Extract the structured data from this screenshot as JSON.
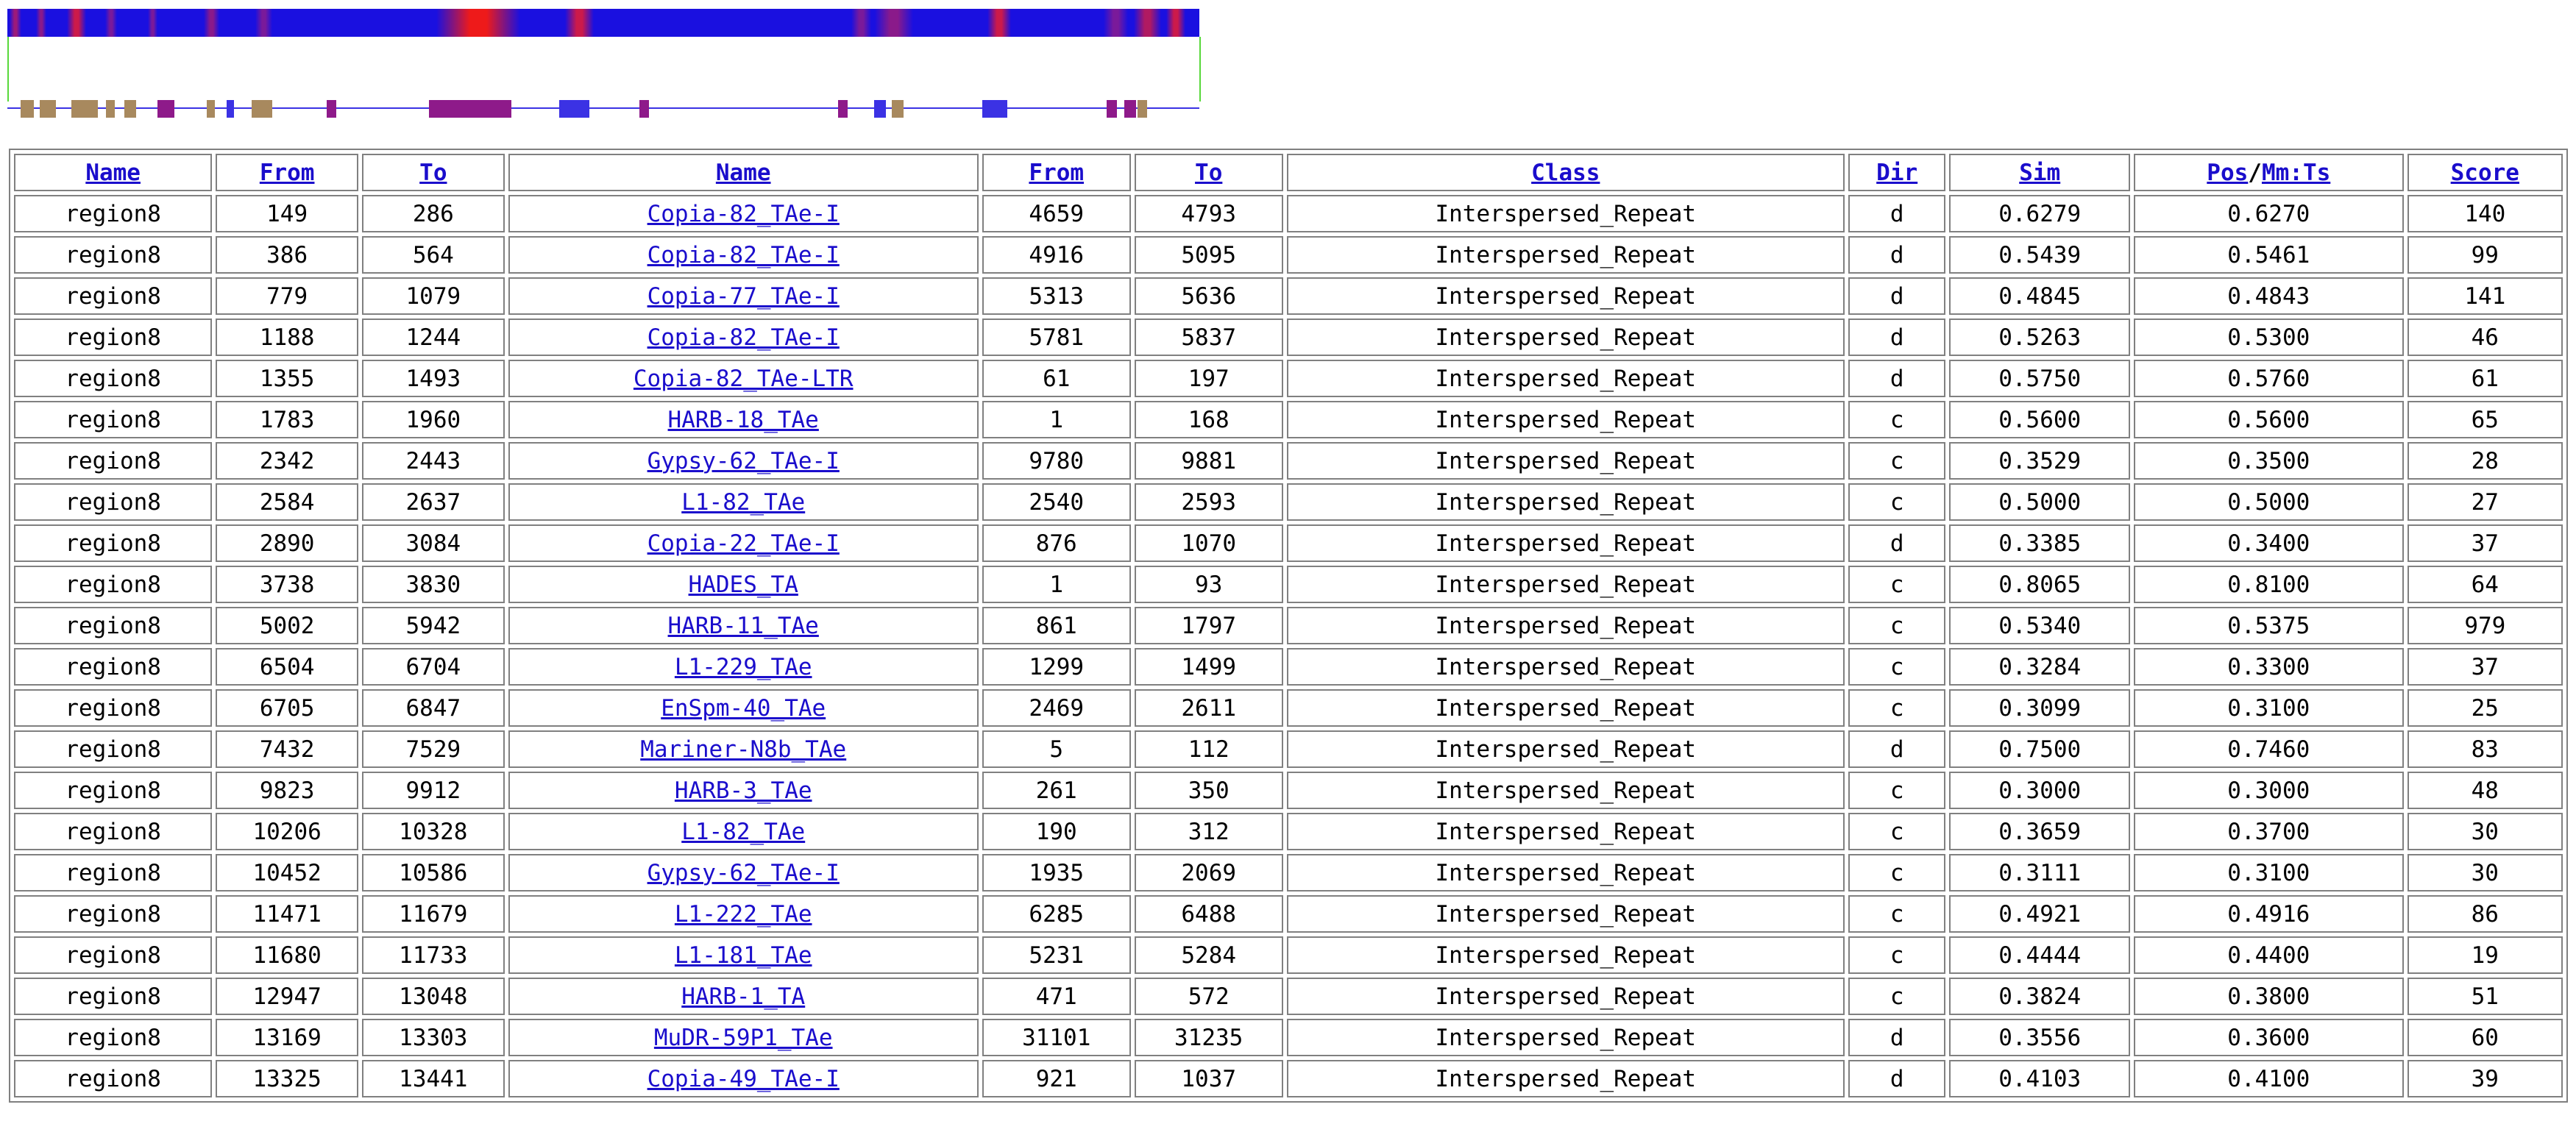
{
  "viz": {
    "heat_base": "#1a10e0",
    "heat_bands": [
      {
        "start": 0.002,
        "end": 0.012,
        "color": "#9b1a7a"
      },
      {
        "start": 0.024,
        "end": 0.033,
        "color": "#8a1a8a"
      },
      {
        "start": 0.05,
        "end": 0.066,
        "color": "#cc1a4a"
      },
      {
        "start": 0.082,
        "end": 0.092,
        "color": "#7a1a9a"
      },
      {
        "start": 0.118,
        "end": 0.126,
        "color": "#7a1a9a"
      },
      {
        "start": 0.165,
        "end": 0.178,
        "color": "#8a1a8a"
      },
      {
        "start": 0.208,
        "end": 0.222,
        "color": "#7a1a9a"
      },
      {
        "start": 0.36,
        "end": 0.43,
        "color": "#ee1a1a"
      },
      {
        "start": 0.468,
        "end": 0.492,
        "color": "#cc1a4a"
      },
      {
        "start": 0.708,
        "end": 0.725,
        "color": "#7a1a9a"
      },
      {
        "start": 0.728,
        "end": 0.76,
        "color": "#8a1a8a"
      },
      {
        "start": 0.822,
        "end": 0.842,
        "color": "#cc1a4a"
      },
      {
        "start": 0.92,
        "end": 0.94,
        "color": "#7a1a9a"
      },
      {
        "start": 0.945,
        "end": 0.968,
        "color": "#b01a62"
      },
      {
        "start": 0.972,
        "end": 0.988,
        "color": "#cc1a4a"
      }
    ],
    "features": [
      {
        "start": 0.011,
        "end": 0.022,
        "color": "#a8895e"
      },
      {
        "start": 0.027,
        "end": 0.041,
        "color": "#a8895e"
      },
      {
        "start": 0.054,
        "end": 0.076,
        "color": "#a8895e"
      },
      {
        "start": 0.083,
        "end": 0.09,
        "color": "#a8895e"
      },
      {
        "start": 0.098,
        "end": 0.108,
        "color": "#a8895e"
      },
      {
        "start": 0.126,
        "end": 0.14,
        "color": "#8e1a8a"
      },
      {
        "start": 0.167,
        "end": 0.174,
        "color": "#a8895e"
      },
      {
        "start": 0.184,
        "end": 0.19,
        "color": "#3b32e4"
      },
      {
        "start": 0.205,
        "end": 0.222,
        "color": "#a8895e"
      },
      {
        "start": 0.268,
        "end": 0.276,
        "color": "#8e1a8a"
      },
      {
        "start": 0.354,
        "end": 0.423,
        "color": "#8e1a8a"
      },
      {
        "start": 0.463,
        "end": 0.488,
        "color": "#3b32e4"
      },
      {
        "start": 0.53,
        "end": 0.538,
        "color": "#8e1a8a"
      },
      {
        "start": 0.697,
        "end": 0.705,
        "color": "#8e1a8a"
      },
      {
        "start": 0.727,
        "end": 0.737,
        "color": "#3b32e4"
      },
      {
        "start": 0.742,
        "end": 0.752,
        "color": "#a8895e"
      },
      {
        "start": 0.818,
        "end": 0.839,
        "color": "#3b32e4"
      },
      {
        "start": 0.922,
        "end": 0.931,
        "color": "#8e1a8a"
      },
      {
        "start": 0.937,
        "end": 0.947,
        "color": "#8e1a8a"
      },
      {
        "start": 0.948,
        "end": 0.956,
        "color": "#a8895e"
      }
    ]
  },
  "table": {
    "headers": {
      "name": "Name",
      "from": "From",
      "to": "To",
      "name2": "Name",
      "from2": "From",
      "to2": "To",
      "class": "Class",
      "dir": "Dir",
      "sim": "Sim",
      "pos": "Pos",
      "sep": "/",
      "mmts": "Mm:Ts",
      "score": "Score"
    },
    "rows": [
      {
        "name": "region8",
        "from": "149",
        "to": "286",
        "repeat": "Copia-82_TAe-I",
        "rfrom": "4659",
        "rto": "4793",
        "class": "Interspersed_Repeat",
        "dir": "d",
        "sim": "0.6279",
        "posmm": "0.6270",
        "score": "140"
      },
      {
        "name": "region8",
        "from": "386",
        "to": "564",
        "repeat": "Copia-82_TAe-I",
        "rfrom": "4916",
        "rto": "5095",
        "class": "Interspersed_Repeat",
        "dir": "d",
        "sim": "0.5439",
        "posmm": "0.5461",
        "score": "99"
      },
      {
        "name": "region8",
        "from": "779",
        "to": "1079",
        "repeat": "Copia-77_TAe-I",
        "rfrom": "5313",
        "rto": "5636",
        "class": "Interspersed_Repeat",
        "dir": "d",
        "sim": "0.4845",
        "posmm": "0.4843",
        "score": "141"
      },
      {
        "name": "region8",
        "from": "1188",
        "to": "1244",
        "repeat": "Copia-82_TAe-I",
        "rfrom": "5781",
        "rto": "5837",
        "class": "Interspersed_Repeat",
        "dir": "d",
        "sim": "0.5263",
        "posmm": "0.5300",
        "score": "46"
      },
      {
        "name": "region8",
        "from": "1355",
        "to": "1493",
        "repeat": "Copia-82_TAe-LTR",
        "rfrom": "61",
        "rto": "197",
        "class": "Interspersed_Repeat",
        "dir": "d",
        "sim": "0.5750",
        "posmm": "0.5760",
        "score": "61"
      },
      {
        "name": "region8",
        "from": "1783",
        "to": "1960",
        "repeat": "HARB-18_TAe",
        "rfrom": "1",
        "rto": "168",
        "class": "Interspersed_Repeat",
        "dir": "c",
        "sim": "0.5600",
        "posmm": "0.5600",
        "score": "65"
      },
      {
        "name": "region8",
        "from": "2342",
        "to": "2443",
        "repeat": "Gypsy-62_TAe-I",
        "rfrom": "9780",
        "rto": "9881",
        "class": "Interspersed_Repeat",
        "dir": "c",
        "sim": "0.3529",
        "posmm": "0.3500",
        "score": "28"
      },
      {
        "name": "region8",
        "from": "2584",
        "to": "2637",
        "repeat": "L1-82_TAe",
        "rfrom": "2540",
        "rto": "2593",
        "class": "Interspersed_Repeat",
        "dir": "c",
        "sim": "0.5000",
        "posmm": "0.5000",
        "score": "27"
      },
      {
        "name": "region8",
        "from": "2890",
        "to": "3084",
        "repeat": "Copia-22_TAe-I",
        "rfrom": "876",
        "rto": "1070",
        "class": "Interspersed_Repeat",
        "dir": "d",
        "sim": "0.3385",
        "posmm": "0.3400",
        "score": "37"
      },
      {
        "name": "region8",
        "from": "3738",
        "to": "3830",
        "repeat": "HADES_TA",
        "rfrom": "1",
        "rto": "93",
        "class": "Interspersed_Repeat",
        "dir": "c",
        "sim": "0.8065",
        "posmm": "0.8100",
        "score": "64"
      },
      {
        "name": "region8",
        "from": "5002",
        "to": "5942",
        "repeat": "HARB-11_TAe",
        "rfrom": "861",
        "rto": "1797",
        "class": "Interspersed_Repeat",
        "dir": "c",
        "sim": "0.5340",
        "posmm": "0.5375",
        "score": "979"
      },
      {
        "name": "region8",
        "from": "6504",
        "to": "6704",
        "repeat": "L1-229_TAe",
        "rfrom": "1299",
        "rto": "1499",
        "class": "Interspersed_Repeat",
        "dir": "c",
        "sim": "0.3284",
        "posmm": "0.3300",
        "score": "37"
      },
      {
        "name": "region8",
        "from": "6705",
        "to": "6847",
        "repeat": "EnSpm-40_TAe",
        "rfrom": "2469",
        "rto": "2611",
        "class": "Interspersed_Repeat",
        "dir": "c",
        "sim": "0.3099",
        "posmm": "0.3100",
        "score": "25"
      },
      {
        "name": "region8",
        "from": "7432",
        "to": "7529",
        "repeat": "Mariner-N8b_TAe",
        "rfrom": "5",
        "rto": "112",
        "class": "Interspersed_Repeat",
        "dir": "d",
        "sim": "0.7500",
        "posmm": "0.7460",
        "score": "83"
      },
      {
        "name": "region8",
        "from": "9823",
        "to": "9912",
        "repeat": "HARB-3_TAe",
        "rfrom": "261",
        "rto": "350",
        "class": "Interspersed_Repeat",
        "dir": "c",
        "sim": "0.3000",
        "posmm": "0.3000",
        "score": "48"
      },
      {
        "name": "region8",
        "from": "10206",
        "to": "10328",
        "repeat": "L1-82_TAe",
        "rfrom": "190",
        "rto": "312",
        "class": "Interspersed_Repeat",
        "dir": "c",
        "sim": "0.3659",
        "posmm": "0.3700",
        "score": "30"
      },
      {
        "name": "region8",
        "from": "10452",
        "to": "10586",
        "repeat": "Gypsy-62_TAe-I",
        "rfrom": "1935",
        "rto": "2069",
        "class": "Interspersed_Repeat",
        "dir": "c",
        "sim": "0.3111",
        "posmm": "0.3100",
        "score": "30"
      },
      {
        "name": "region8",
        "from": "11471",
        "to": "11679",
        "repeat": "L1-222_TAe",
        "rfrom": "6285",
        "rto": "6488",
        "class": "Interspersed_Repeat",
        "dir": "c",
        "sim": "0.4921",
        "posmm": "0.4916",
        "score": "86"
      },
      {
        "name": "region8",
        "from": "11680",
        "to": "11733",
        "repeat": "L1-181_TAe",
        "rfrom": "5231",
        "rto": "5284",
        "class": "Interspersed_Repeat",
        "dir": "c",
        "sim": "0.4444",
        "posmm": "0.4400",
        "score": "19"
      },
      {
        "name": "region8",
        "from": "12947",
        "to": "13048",
        "repeat": "HARB-1_TA",
        "rfrom": "471",
        "rto": "572",
        "class": "Interspersed_Repeat",
        "dir": "c",
        "sim": "0.3824",
        "posmm": "0.3800",
        "score": "51"
      },
      {
        "name": "region8",
        "from": "13169",
        "to": "13303",
        "repeat": "MuDR-59P1_TAe",
        "rfrom": "31101",
        "rto": "31235",
        "class": "Interspersed_Repeat",
        "dir": "d",
        "sim": "0.3556",
        "posmm": "0.3600",
        "score": "60"
      },
      {
        "name": "region8",
        "from": "13325",
        "to": "13441",
        "repeat": "Copia-49_TAe-I",
        "rfrom": "921",
        "rto": "1037",
        "class": "Interspersed_Repeat",
        "dir": "d",
        "sim": "0.4103",
        "posmm": "0.4100",
        "score": "39"
      }
    ]
  }
}
